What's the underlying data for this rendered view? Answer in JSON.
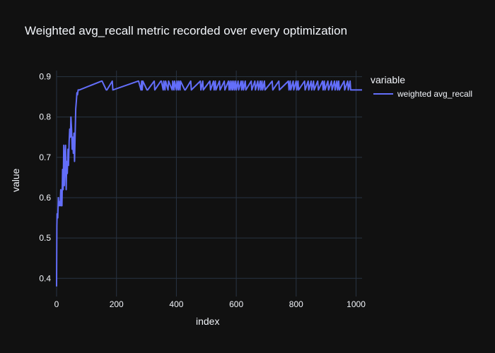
{
  "chart_data": {
    "type": "line",
    "title": "Weighted avg_recall metric recorded over every optimization",
    "xlabel": "index",
    "ylabel": "value",
    "xlim": [
      0,
      1020
    ],
    "ylim": [
      0.355,
      0.915
    ],
    "xticks": [
      0,
      200,
      400,
      600,
      800,
      1000
    ],
    "xtick_labels": [
      "0",
      "200",
      "400",
      "600",
      "800",
      "1000"
    ],
    "yticks": [
      0.4,
      0.5,
      0.6,
      0.7,
      0.8,
      0.9
    ],
    "ytick_labels": [
      "0.4",
      "0.5",
      "0.6",
      "0.7",
      "0.8",
      "0.9"
    ],
    "grid": true,
    "legend": {
      "title": "variable",
      "position": "top-right"
    },
    "series": [
      {
        "name": "weighted avg_recall",
        "color": "#636efa",
        "x": [
          0,
          1,
          2,
          4,
          6,
          8,
          10,
          12,
          14,
          16,
          18,
          20,
          22,
          24,
          26,
          28,
          30,
          32,
          34,
          36,
          38,
          40,
          42,
          44,
          46,
          48,
          50,
          52,
          54,
          56,
          58,
          60,
          62,
          64,
          66,
          68,
          70,
          72,
          74,
          76,
          150,
          152,
          166,
          168,
          186,
          188,
          272,
          274,
          282,
          284,
          286,
          288,
          302,
          304,
          326,
          328,
          348,
          350,
          356,
          358,
          362,
          364,
          372,
          374,
          386,
          388,
          392,
          394,
          400,
          402,
          406,
          408,
          412,
          414,
          428,
          430,
          448,
          450,
          480,
          482,
          488,
          490,
          512,
          514,
          524,
          526,
          530,
          532,
          544,
          546,
          560,
          562,
          574,
          576,
          580,
          582,
          586,
          588,
          592,
          594,
          598,
          600,
          606,
          608,
          616,
          618,
          622,
          624,
          630,
          632,
          650,
          652,
          662,
          664,
          672,
          674,
          680,
          682,
          686,
          688,
          694,
          696,
          720,
          722,
          742,
          744,
          774,
          776,
          780,
          782,
          790,
          792,
          800,
          802,
          806,
          808,
          828,
          830,
          840,
          842,
          850,
          852,
          858,
          860,
          872,
          874,
          888,
          890,
          894,
          896,
          906,
          908,
          918,
          920,
          928,
          930,
          936,
          938,
          942,
          944,
          960,
          962,
          972,
          974,
          980,
          982,
          1020
        ],
        "y": [
          0.38,
          0.53,
          0.56,
          0.55,
          0.6,
          0.58,
          0.59,
          0.58,
          0.62,
          0.58,
          0.58,
          0.67,
          0.62,
          0.73,
          0.63,
          0.7,
          0.73,
          0.62,
          0.69,
          0.66,
          0.72,
          0.68,
          0.74,
          0.77,
          0.75,
          0.8,
          0.77,
          0.72,
          0.75,
          0.71,
          0.76,
          0.69,
          0.76,
          0.82,
          0.84,
          0.86,
          0.855,
          0.867,
          0.867,
          0.867,
          0.889,
          0.889,
          0.867,
          0.867,
          0.889,
          0.867,
          0.889,
          0.889,
          0.867,
          0.889,
          0.867,
          0.889,
          0.867,
          0.867,
          0.889,
          0.867,
          0.889,
          0.889,
          0.867,
          0.889,
          0.867,
          0.889,
          0.867,
          0.889,
          0.867,
          0.889,
          0.867,
          0.889,
          0.867,
          0.889,
          0.867,
          0.889,
          0.867,
          0.889,
          0.867,
          0.867,
          0.889,
          0.867,
          0.889,
          0.867,
          0.889,
          0.867,
          0.889,
          0.867,
          0.889,
          0.867,
          0.889,
          0.867,
          0.889,
          0.867,
          0.889,
          0.867,
          0.889,
          0.867,
          0.889,
          0.867,
          0.889,
          0.867,
          0.889,
          0.867,
          0.889,
          0.867,
          0.889,
          0.867,
          0.889,
          0.867,
          0.889,
          0.867,
          0.889,
          0.867,
          0.889,
          0.867,
          0.889,
          0.867,
          0.889,
          0.867,
          0.889,
          0.867,
          0.889,
          0.867,
          0.889,
          0.867,
          0.889,
          0.867,
          0.889,
          0.867,
          0.889,
          0.867,
          0.889,
          0.867,
          0.889,
          0.867,
          0.889,
          0.867,
          0.889,
          0.867,
          0.889,
          0.867,
          0.889,
          0.867,
          0.889,
          0.867,
          0.889,
          0.867,
          0.889,
          0.867,
          0.889,
          0.867,
          0.889,
          0.867,
          0.889,
          0.867,
          0.889,
          0.867,
          0.889,
          0.867,
          0.889,
          0.867,
          0.889,
          0.867,
          0.889,
          0.867,
          0.889,
          0.867,
          0.889,
          0.867,
          0.867
        ]
      }
    ]
  }
}
